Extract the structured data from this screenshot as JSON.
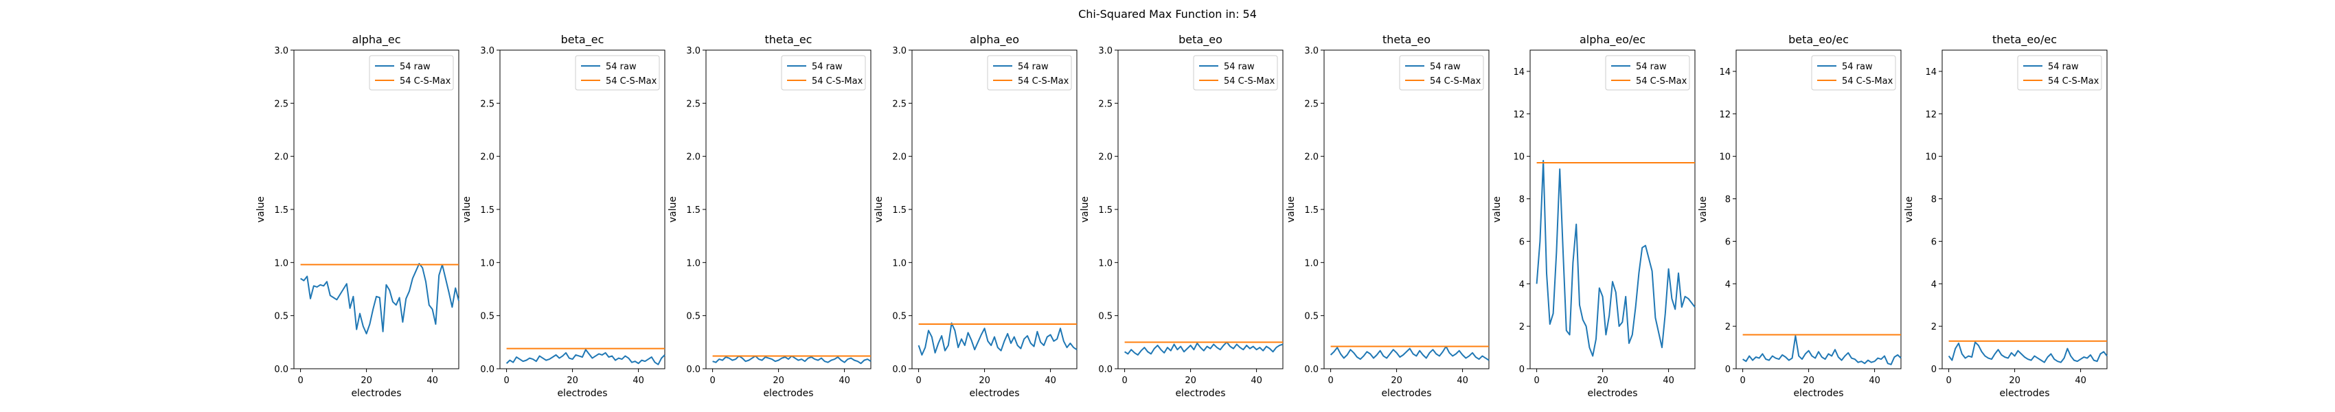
{
  "suptitle": "Chi-Squared Max Function in: 54",
  "colors": {
    "raw": "#1f77b4",
    "max": "#ff7f0e"
  },
  "chart_data": [
    {
      "type": "line",
      "title": "alpha_ec",
      "xlabel": "electrodes",
      "ylabel": "value",
      "xlim": [
        -2,
        48
      ],
      "ylim": [
        0,
        3.0
      ],
      "xticks": [
        0,
        20,
        40
      ],
      "yticks": [
        0.0,
        0.5,
        1.0,
        1.5,
        2.0,
        2.5,
        3.0
      ],
      "ytick_labels": [
        "0.0",
        "0.5",
        "1.0",
        "1.5",
        "2.0",
        "2.5",
        "3.0"
      ],
      "legend": "top-right",
      "grid": false,
      "series": [
        {
          "name": "54 raw",
          "x_start": 0,
          "x_step": 1,
          "values": [
            0.85,
            0.83,
            0.87,
            0.66,
            0.78,
            0.77,
            0.79,
            0.78,
            0.82,
            0.69,
            0.67,
            0.65,
            0.7,
            0.75,
            0.8,
            0.57,
            0.68,
            0.37,
            0.52,
            0.4,
            0.33,
            0.42,
            0.56,
            0.68,
            0.67,
            0.35,
            0.79,
            0.74,
            0.63,
            0.6,
            0.67,
            0.44,
            0.66,
            0.73,
            0.85,
            0.92,
            0.99,
            0.95,
            0.82,
            0.6,
            0.56,
            0.42,
            0.88,
            0.98,
            0.85,
            0.72,
            0.58,
            0.76,
            0.64
          ]
        },
        {
          "name": "54 C-S-Max",
          "x": [
            0,
            48
          ],
          "values": [
            0.98,
            0.98
          ]
        }
      ]
    },
    {
      "type": "line",
      "title": "beta_ec",
      "xlabel": "electrodes",
      "ylabel": "value",
      "xlim": [
        -2,
        48
      ],
      "ylim": [
        0,
        3.0
      ],
      "xticks": [
        0,
        20,
        40
      ],
      "yticks": [
        0.0,
        0.5,
        1.0,
        1.5,
        2.0,
        2.5,
        3.0
      ],
      "ytick_labels": [
        "0.0",
        "0.5",
        "1.0",
        "1.5",
        "2.0",
        "2.5",
        "3.0"
      ],
      "legend": "top-right",
      "grid": false,
      "series": [
        {
          "name": "54 raw",
          "x_start": 0,
          "x_step": 1,
          "values": [
            0.05,
            0.08,
            0.06,
            0.11,
            0.09,
            0.07,
            0.08,
            0.1,
            0.09,
            0.07,
            0.12,
            0.1,
            0.08,
            0.09,
            0.11,
            0.13,
            0.1,
            0.12,
            0.15,
            0.1,
            0.09,
            0.13,
            0.12,
            0.11,
            0.18,
            0.14,
            0.1,
            0.12,
            0.14,
            0.13,
            0.15,
            0.11,
            0.12,
            0.08,
            0.1,
            0.09,
            0.12,
            0.1,
            0.06,
            0.07,
            0.05,
            0.08,
            0.07,
            0.09,
            0.11,
            0.06,
            0.04,
            0.1,
            0.13
          ]
        },
        {
          "name": "54 C-S-Max",
          "x": [
            0,
            48
          ],
          "values": [
            0.19,
            0.19
          ]
        }
      ]
    },
    {
      "type": "line",
      "title": "theta_ec",
      "xlabel": "electrodes",
      "ylabel": "value",
      "xlim": [
        -2,
        48
      ],
      "ylim": [
        0,
        3.0
      ],
      "xticks": [
        0,
        20,
        40
      ],
      "yticks": [
        0.0,
        0.5,
        1.0,
        1.5,
        2.0,
        2.5,
        3.0
      ],
      "ytick_labels": [
        "0.0",
        "0.5",
        "1.0",
        "1.5",
        "2.0",
        "2.5",
        "3.0"
      ],
      "legend": "top-right",
      "grid": false,
      "series": [
        {
          "name": "54 raw",
          "x_start": 0,
          "x_step": 1,
          "values": [
            0.07,
            0.06,
            0.09,
            0.08,
            0.11,
            0.1,
            0.08,
            0.09,
            0.12,
            0.1,
            0.07,
            0.08,
            0.1,
            0.12,
            0.09,
            0.08,
            0.11,
            0.1,
            0.09,
            0.07,
            0.08,
            0.1,
            0.11,
            0.09,
            0.12,
            0.1,
            0.08,
            0.09,
            0.07,
            0.1,
            0.11,
            0.09,
            0.08,
            0.1,
            0.07,
            0.06,
            0.08,
            0.09,
            0.11,
            0.08,
            0.06,
            0.09,
            0.1,
            0.08,
            0.07,
            0.05,
            0.08,
            0.09,
            0.07
          ]
        },
        {
          "name": "54 C-S-Max",
          "x": [
            0,
            48
          ],
          "values": [
            0.12,
            0.12
          ]
        }
      ]
    },
    {
      "type": "line",
      "title": "alpha_eo",
      "xlabel": "electrodes",
      "ylabel": "value",
      "xlim": [
        -2,
        48
      ],
      "ylim": [
        0,
        3.0
      ],
      "xticks": [
        0,
        20,
        40
      ],
      "yticks": [
        0.0,
        0.5,
        1.0,
        1.5,
        2.0,
        2.5,
        3.0
      ],
      "ytick_labels": [
        "0.0",
        "0.5",
        "1.0",
        "1.5",
        "2.0",
        "2.5",
        "3.0"
      ],
      "legend": "top-right",
      "grid": false,
      "series": [
        {
          "name": "54 raw",
          "x_start": 0,
          "x_step": 1,
          "values": [
            0.22,
            0.13,
            0.2,
            0.36,
            0.3,
            0.15,
            0.24,
            0.31,
            0.17,
            0.22,
            0.43,
            0.36,
            0.2,
            0.28,
            0.22,
            0.34,
            0.27,
            0.18,
            0.25,
            0.32,
            0.38,
            0.26,
            0.22,
            0.3,
            0.2,
            0.17,
            0.26,
            0.33,
            0.24,
            0.3,
            0.22,
            0.19,
            0.28,
            0.31,
            0.24,
            0.21,
            0.35,
            0.25,
            0.22,
            0.3,
            0.32,
            0.26,
            0.28,
            0.38,
            0.26,
            0.2,
            0.24,
            0.2,
            0.18
          ]
        },
        {
          "name": "54 C-S-Max",
          "x": [
            0,
            48
          ],
          "values": [
            0.42,
            0.42
          ]
        }
      ]
    },
    {
      "type": "line",
      "title": "beta_eo",
      "xlabel": "electrodes",
      "ylabel": "value",
      "xlim": [
        -2,
        48
      ],
      "ylim": [
        0,
        3.0
      ],
      "xticks": [
        0,
        20,
        40
      ],
      "yticks": [
        0.0,
        0.5,
        1.0,
        1.5,
        2.0,
        2.5,
        3.0
      ],
      "ytick_labels": [
        "0.0",
        "0.5",
        "1.0",
        "1.5",
        "2.0",
        "2.5",
        "3.0"
      ],
      "legend": "top-right",
      "grid": false,
      "series": [
        {
          "name": "54 raw",
          "x_start": 0,
          "x_step": 1,
          "values": [
            0.16,
            0.14,
            0.18,
            0.15,
            0.13,
            0.17,
            0.2,
            0.16,
            0.14,
            0.19,
            0.22,
            0.18,
            0.15,
            0.2,
            0.17,
            0.23,
            0.18,
            0.21,
            0.16,
            0.19,
            0.22,
            0.18,
            0.24,
            0.2,
            0.17,
            0.21,
            0.19,
            0.23,
            0.2,
            0.18,
            0.22,
            0.25,
            0.21,
            0.19,
            0.23,
            0.2,
            0.18,
            0.22,
            0.19,
            0.21,
            0.18,
            0.2,
            0.17,
            0.21,
            0.19,
            0.16,
            0.2,
            0.22,
            0.23
          ]
        },
        {
          "name": "54 C-S-Max",
          "x": [
            0,
            48
          ],
          "values": [
            0.25,
            0.25
          ]
        }
      ]
    },
    {
      "type": "line",
      "title": "theta_eo",
      "xlabel": "electrodes",
      "ylabel": "value",
      "xlim": [
        -2,
        48
      ],
      "ylim": [
        0,
        3.0
      ],
      "xticks": [
        0,
        20,
        40
      ],
      "yticks": [
        0.0,
        0.5,
        1.0,
        1.5,
        2.0,
        2.5,
        3.0
      ],
      "ytick_labels": [
        "0.0",
        "0.5",
        "1.0",
        "1.5",
        "2.0",
        "2.5",
        "3.0"
      ],
      "legend": "top-right",
      "grid": false,
      "series": [
        {
          "name": "54 raw",
          "x_start": 0,
          "x_step": 1,
          "values": [
            0.13,
            0.16,
            0.2,
            0.14,
            0.1,
            0.13,
            0.18,
            0.15,
            0.11,
            0.09,
            0.12,
            0.16,
            0.14,
            0.1,
            0.13,
            0.17,
            0.12,
            0.1,
            0.14,
            0.18,
            0.15,
            0.11,
            0.13,
            0.16,
            0.19,
            0.14,
            0.12,
            0.17,
            0.13,
            0.1,
            0.15,
            0.18,
            0.14,
            0.12,
            0.16,
            0.21,
            0.15,
            0.12,
            0.14,
            0.17,
            0.13,
            0.1,
            0.12,
            0.15,
            0.11,
            0.09,
            0.12,
            0.1,
            0.08
          ]
        },
        {
          "name": "54 C-S-Max",
          "x": [
            0,
            48
          ],
          "values": [
            0.21,
            0.21
          ]
        }
      ]
    },
    {
      "type": "line",
      "title": "alpha_eo/ec",
      "xlabel": "electrodes",
      "ylabel": "value",
      "xlim": [
        -2,
        48
      ],
      "ylim": [
        0,
        15
      ],
      "xticks": [
        0,
        20,
        40
      ],
      "yticks": [
        0,
        2,
        4,
        6,
        8,
        10,
        12,
        14
      ],
      "ytick_labels": [
        "0",
        "2",
        "4",
        "6",
        "8",
        "10",
        "12",
        "14"
      ],
      "legend": "top-right",
      "grid": false,
      "series": [
        {
          "name": "54 raw",
          "x_start": 0,
          "x_step": 1,
          "values": [
            4.0,
            6.0,
            9.8,
            4.5,
            2.1,
            2.6,
            5.5,
            9.4,
            5.5,
            1.8,
            1.6,
            5.0,
            6.8,
            3.0,
            2.3,
            2.0,
            1.0,
            0.6,
            1.4,
            3.8,
            3.4,
            1.6,
            2.5,
            4.1,
            3.6,
            2.0,
            2.2,
            3.4,
            1.2,
            1.6,
            2.9,
            4.5,
            5.7,
            5.8,
            5.2,
            4.6,
            2.4,
            1.7,
            1.0,
            2.6,
            4.7,
            3.3,
            2.8,
            4.5,
            2.9,
            3.4,
            3.3,
            3.1,
            2.9
          ]
        },
        {
          "name": "54 C-S-Max",
          "x": [
            0,
            48
          ],
          "values": [
            9.7,
            9.7
          ]
        }
      ]
    },
    {
      "type": "line",
      "title": "beta_eo/ec",
      "xlabel": "electrodes",
      "ylabel": "value",
      "xlim": [
        -2,
        48
      ],
      "ylim": [
        0,
        15
      ],
      "xticks": [
        0,
        20,
        40
      ],
      "yticks": [
        0,
        2,
        4,
        6,
        8,
        10,
        12,
        14
      ],
      "ytick_labels": [
        "0",
        "2",
        "4",
        "6",
        "8",
        "10",
        "12",
        "14"
      ],
      "legend": "top-right",
      "grid": false,
      "series": [
        {
          "name": "54 raw",
          "x_start": 0,
          "x_step": 1,
          "values": [
            0.45,
            0.35,
            0.6,
            0.4,
            0.55,
            0.5,
            0.7,
            0.45,
            0.4,
            0.6,
            0.5,
            0.45,
            0.65,
            0.55,
            0.4,
            0.5,
            1.55,
            0.6,
            0.45,
            0.7,
            0.85,
            0.6,
            0.5,
            0.8,
            0.55,
            0.45,
            0.7,
            0.6,
            0.9,
            0.55,
            0.4,
            0.6,
            0.75,
            0.5,
            0.45,
            0.3,
            0.35,
            0.25,
            0.4,
            0.3,
            0.35,
            0.5,
            0.45,
            0.6,
            0.25,
            0.2,
            0.55,
            0.65,
            0.5
          ]
        },
        {
          "name": "54 C-S-Max",
          "x": [
            0,
            48
          ],
          "values": [
            1.6,
            1.6
          ]
        }
      ]
    },
    {
      "type": "line",
      "title": "theta_eo/ec",
      "xlabel": "electrodes",
      "ylabel": "value",
      "xlim": [
        -2,
        48
      ],
      "ylim": [
        0,
        15
      ],
      "xticks": [
        0,
        20,
        40
      ],
      "yticks": [
        0,
        2,
        4,
        6,
        8,
        10,
        12,
        14
      ],
      "ytick_labels": [
        "0",
        "2",
        "4",
        "6",
        "8",
        "10",
        "12",
        "14"
      ],
      "legend": "top-right",
      "grid": false,
      "series": [
        {
          "name": "54 raw",
          "x_start": 0,
          "x_step": 1,
          "values": [
            0.6,
            0.4,
            0.95,
            1.2,
            0.7,
            0.5,
            0.6,
            0.55,
            1.25,
            1.1,
            0.8,
            0.6,
            0.5,
            0.45,
            0.7,
            0.9,
            0.65,
            0.55,
            0.5,
            0.75,
            0.6,
            0.85,
            0.7,
            0.55,
            0.45,
            0.4,
            0.6,
            0.5,
            0.4,
            0.3,
            0.55,
            0.7,
            0.45,
            0.35,
            0.3,
            0.5,
            0.95,
            0.6,
            0.4,
            0.35,
            0.45,
            0.55,
            0.5,
            0.65,
            0.4,
            0.35,
            0.7,
            0.8,
            0.6
          ]
        },
        {
          "name": "54 C-S-Max",
          "x": [
            0,
            48
          ],
          "values": [
            1.3,
            1.3
          ]
        }
      ]
    }
  ]
}
